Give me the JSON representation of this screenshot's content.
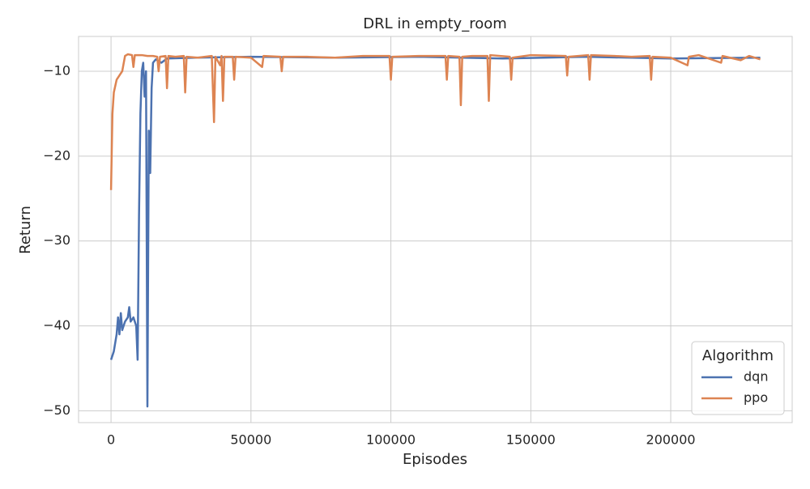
{
  "chart_data": {
    "type": "line",
    "title": "DRL in empty_room",
    "x_label": "Episodes",
    "y_label": "Return",
    "xlim": [
      -11600,
      243400
    ],
    "ylim": [
      -51.4,
      -5.9
    ],
    "xticks": [
      0,
      50000,
      100000,
      150000,
      200000
    ],
    "yticks": [
      {
        "value": -50,
        "label": "−50"
      },
      {
        "value": -40,
        "label": "−40"
      },
      {
        "value": -30,
        "label": "−30"
      },
      {
        "value": -20,
        "label": "−20"
      },
      {
        "value": -10,
        "label": "−10"
      }
    ],
    "grid": true,
    "legend_title": "Algorithm",
    "legend_loc": "lower right",
    "series": [
      {
        "name": "dqn",
        "color": "#4c72b0",
        "x": [
          0,
          1000,
          2000,
          2500,
          3000,
          3500,
          4000,
          5000,
          6000,
          6500,
          7000,
          8000,
          9000,
          9500,
          10000,
          10500,
          11000,
          11500,
          12000,
          12500,
          13000,
          13500,
          14000,
          14500,
          15000,
          16000,
          18000,
          20000,
          30000,
          50000,
          80000,
          110000,
          140000,
          170000,
          200000,
          232000
        ],
        "values": [
          -44,
          -43,
          -41,
          -39,
          -41,
          -38.5,
          -40.5,
          -39.5,
          -39,
          -37.8,
          -39.5,
          -39,
          -40,
          -44,
          -27,
          -15,
          -10,
          -9,
          -13,
          -10,
          -49.5,
          -17,
          -22,
          -12,
          -9,
          -8.6,
          -9,
          -8.5,
          -8.4,
          -8.3,
          -8.4,
          -8.3,
          -8.5,
          -8.3,
          -8.5,
          -8.4
        ]
      },
      {
        "name": "ppo",
        "color": "#dd8452",
        "x": [
          0,
          500,
          1000,
          2000,
          3000,
          4000,
          5000,
          6000,
          7500,
          8000,
          8500,
          11000,
          13000,
          15000,
          16500,
          17000,
          17500,
          19500,
          20000,
          20500,
          23000,
          26000,
          26500,
          27000,
          31000,
          36000,
          36800,
          37300,
          39000,
          39500,
          40000,
          40500,
          43500,
          44000,
          44500,
          50000,
          54000,
          54500,
          60500,
          61000,
          61500,
          70000,
          80000,
          90000,
          99500,
          100000,
          100500,
          110000,
          119500,
          120000,
          120500,
          124500,
          125000,
          125500,
          129000,
          134500,
          135000,
          135500,
          142500,
          143000,
          143500,
          150000,
          162500,
          163000,
          163500,
          170500,
          171000,
          171500,
          180000,
          186000,
          192500,
          193000,
          193500,
          200000,
          206000,
          206500,
          210000,
          218000,
          218500,
          225000,
          228000,
          232000
        ],
        "values": [
          -24,
          -15,
          -12.5,
          -11,
          -10.5,
          -10,
          -8.2,
          -8,
          -8.1,
          -9.5,
          -8.1,
          -8.1,
          -8.2,
          -8.2,
          -8.3,
          -10,
          -8.3,
          -8.2,
          -12,
          -8.2,
          -8.3,
          -8.2,
          -12.5,
          -8.3,
          -8.4,
          -8.2,
          -16,
          -8.3,
          -9.3,
          -8.2,
          -13.5,
          -8.3,
          -8.3,
          -11,
          -8.3,
          -8.4,
          -9.5,
          -8.2,
          -8.3,
          -10,
          -8.3,
          -8.3,
          -8.4,
          -8.2,
          -8.2,
          -11,
          -8.3,
          -8.2,
          -8.2,
          -11,
          -8.2,
          -8.3,
          -14,
          -8.3,
          -8.2,
          -8.2,
          -13.5,
          -8.1,
          -8.3,
          -11,
          -8.4,
          -8.1,
          -8.2,
          -10.5,
          -8.3,
          -8.1,
          -11,
          -8.1,
          -8.2,
          -8.3,
          -8.2,
          -11,
          -8.3,
          -8.4,
          -9.3,
          -8.3,
          -8.1,
          -9,
          -8.2,
          -8.7,
          -8.2,
          -8.6
        ]
      }
    ]
  }
}
